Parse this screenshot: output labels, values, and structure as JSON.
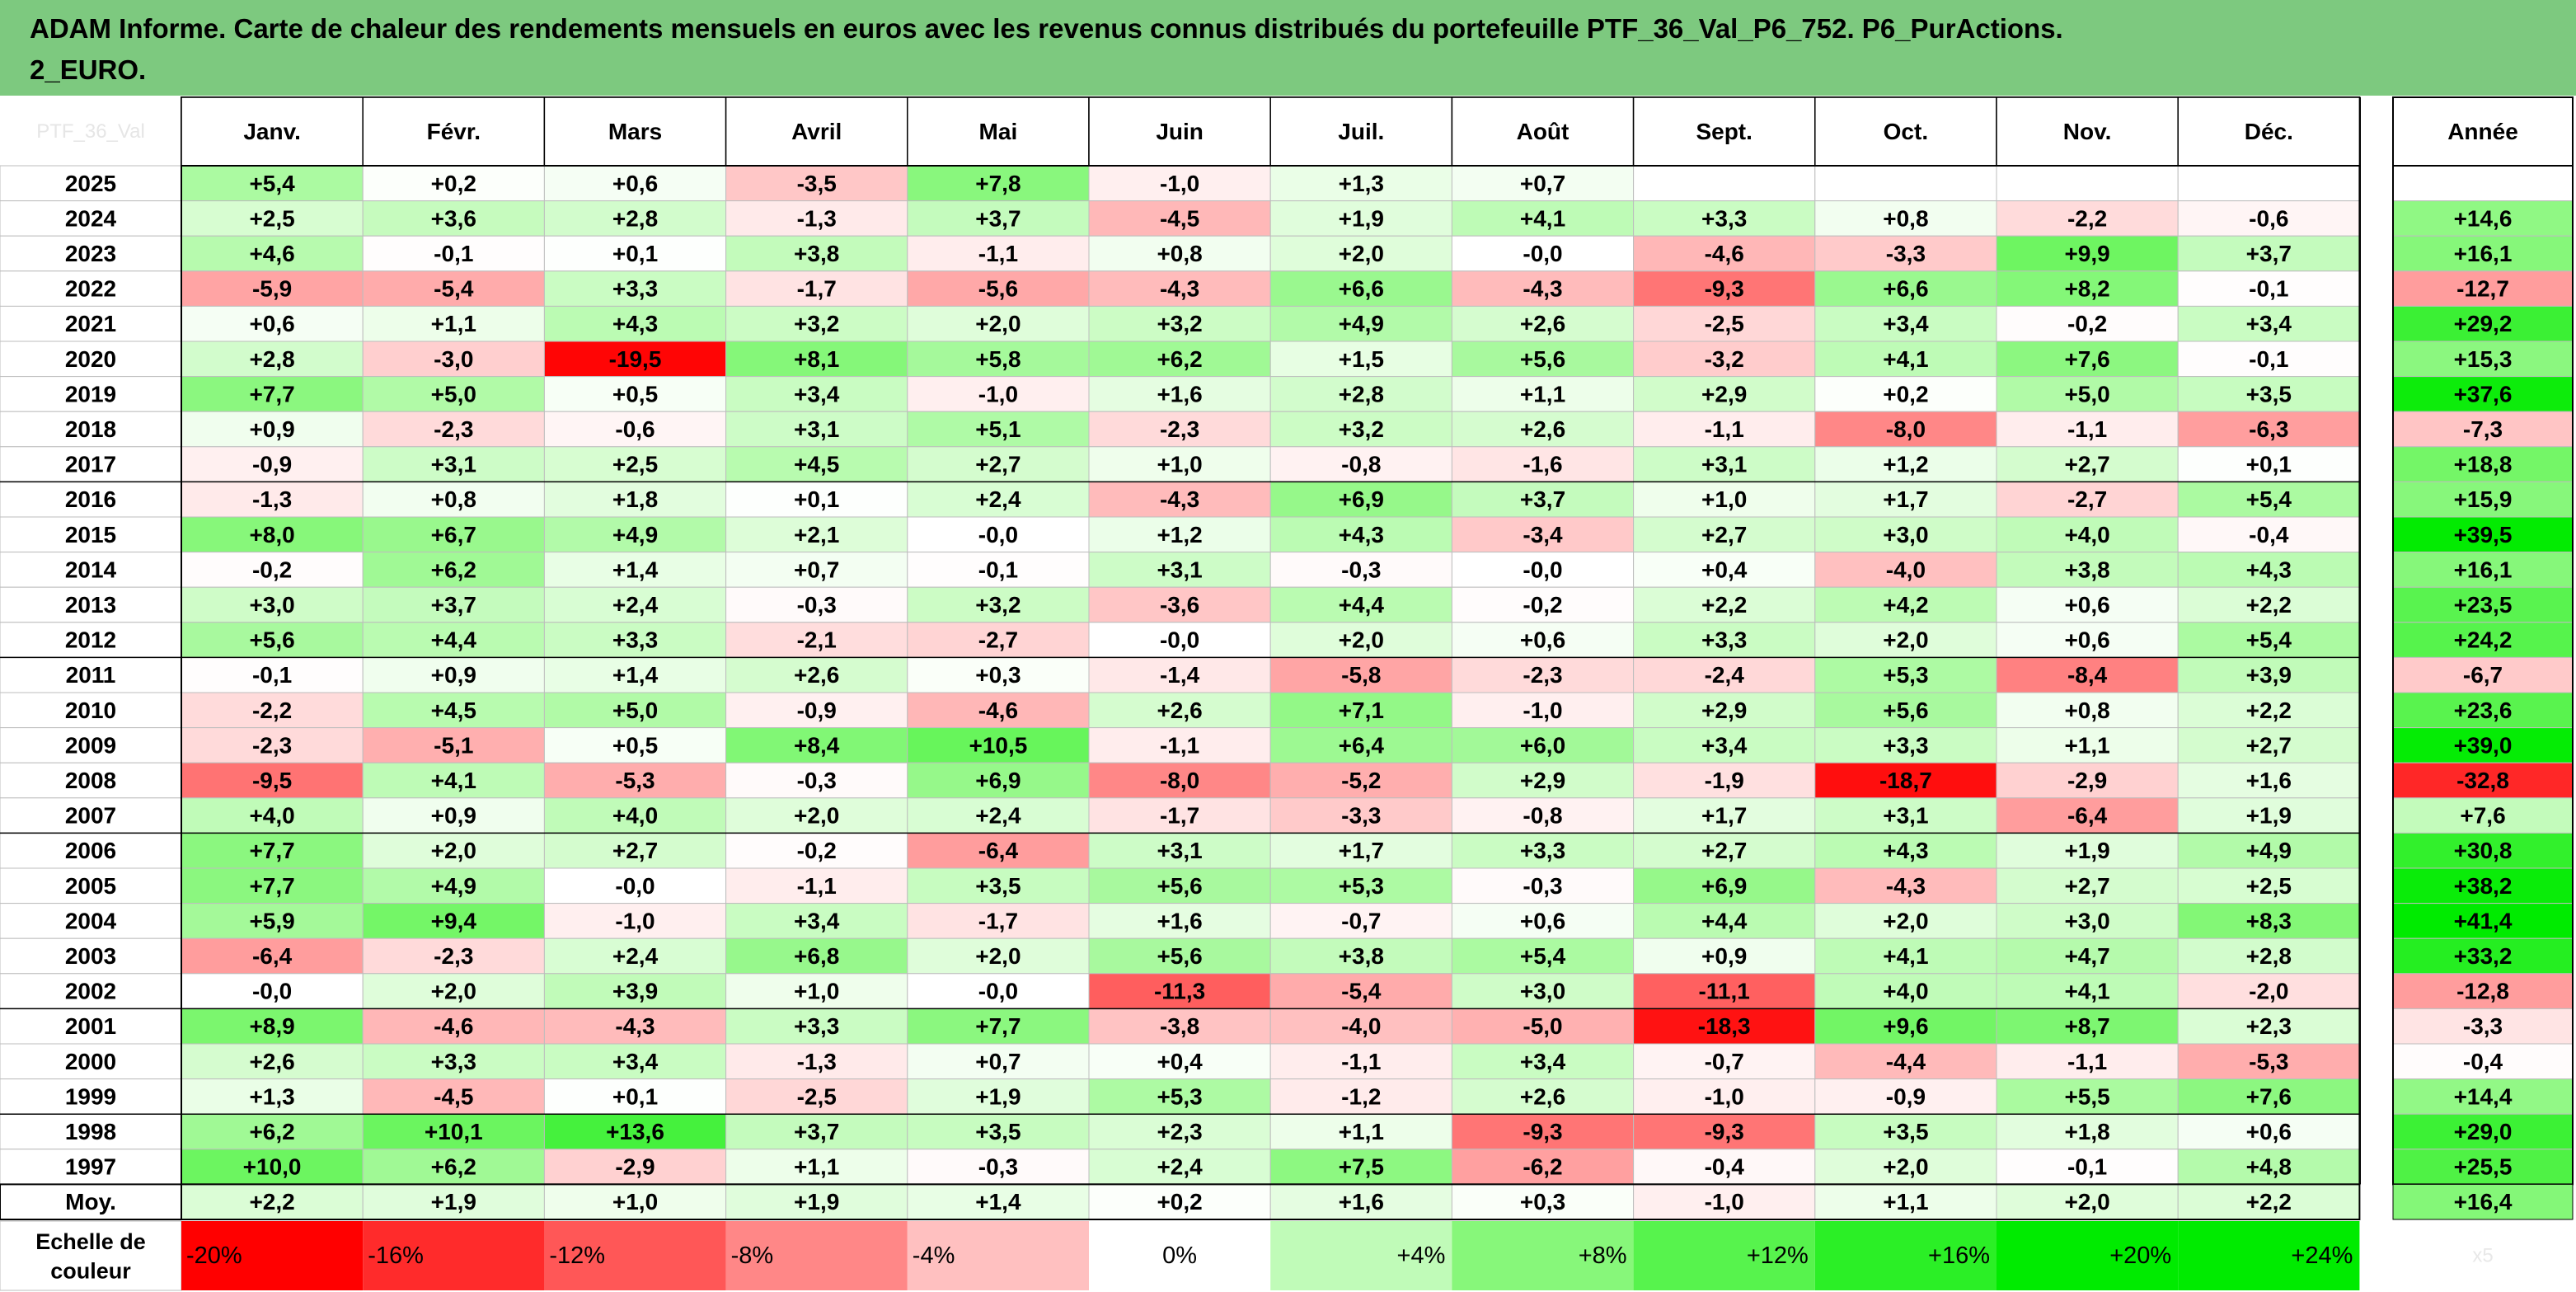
{
  "title": "ADAM Informe. Carte de chaleur des rendements mensuels en euros avec les revenus connus distribués du portefeuille PTF_36_Val_P6_752. P6_PurActions.\n2_EURO.",
  "chart_data": {
    "type": "heatmap",
    "corner_label": "PTF_36_Val",
    "columns": [
      "Janv.",
      "Févr.",
      "Mars",
      "Avril",
      "Mai",
      "Juin",
      "Juil.",
      "Août",
      "Sept.",
      "Oct.",
      "Nov.",
      "Déc."
    ],
    "annual_header": "Année",
    "rows": [
      {
        "year": "2025",
        "months": [
          5.4,
          0.2,
          0.6,
          -3.5,
          7.8,
          -1.0,
          1.3,
          0.7,
          null,
          null,
          null,
          null
        ],
        "annual": null
      },
      {
        "year": "2024",
        "months": [
          2.5,
          3.6,
          2.8,
          -1.3,
          3.7,
          -4.5,
          1.9,
          4.1,
          3.3,
          0.8,
          -2.2,
          -0.6
        ],
        "annual": 14.6
      },
      {
        "year": "2023",
        "months": [
          4.6,
          -0.1,
          0.1,
          3.8,
          -1.1,
          0.8,
          2.0,
          -0.0,
          -4.6,
          -3.3,
          9.9,
          3.7
        ],
        "annual": 16.1
      },
      {
        "year": "2022",
        "months": [
          -5.9,
          -5.4,
          3.3,
          -1.7,
          -5.6,
          -4.3,
          6.6,
          -4.3,
          -9.3,
          6.6,
          8.2,
          -0.1
        ],
        "annual": -12.7
      },
      {
        "year": "2021",
        "months": [
          0.6,
          1.1,
          4.3,
          3.2,
          2.0,
          3.2,
          4.9,
          2.6,
          -2.5,
          3.4,
          -0.2,
          3.4
        ],
        "annual": 29.2
      },
      {
        "year": "2020",
        "months": [
          2.8,
          -3.0,
          -19.5,
          8.1,
          5.8,
          6.2,
          1.5,
          5.6,
          -3.2,
          4.1,
          7.6,
          -0.1
        ],
        "annual": 15.3
      },
      {
        "year": "2019",
        "months": [
          7.7,
          5.0,
          0.5,
          3.4,
          -1.0,
          1.6,
          2.8,
          1.1,
          2.9,
          0.2,
          5.0,
          3.5
        ],
        "annual": 37.6
      },
      {
        "year": "2018",
        "months": [
          0.9,
          -2.3,
          -0.6,
          3.1,
          5.1,
          -2.3,
          3.2,
          2.6,
          -1.1,
          -8.0,
          -1.1,
          -6.3
        ],
        "annual": -7.3
      },
      {
        "year": "2017",
        "months": [
          -0.9,
          3.1,
          2.5,
          4.5,
          2.7,
          1.0,
          -0.8,
          -1.6,
          3.1,
          1.2,
          2.7,
          0.1
        ],
        "annual": 18.8
      },
      {
        "year": "2016",
        "months": [
          -1.3,
          0.8,
          1.8,
          0.1,
          2.4,
          -4.3,
          6.9,
          3.7,
          1.0,
          1.7,
          -2.7,
          5.4
        ],
        "annual": 15.9
      },
      {
        "year": "2015",
        "months": [
          8.0,
          6.7,
          4.9,
          2.1,
          -0.0,
          1.2,
          4.3,
          -3.4,
          2.7,
          3.0,
          4.0,
          -0.4
        ],
        "annual": 39.5
      },
      {
        "year": "2014",
        "months": [
          -0.2,
          6.2,
          1.4,
          0.7,
          -0.1,
          3.1,
          -0.3,
          -0.0,
          0.4,
          -4.0,
          3.8,
          4.3
        ],
        "annual": 16.1
      },
      {
        "year": "2013",
        "months": [
          3.0,
          3.7,
          2.4,
          -0.3,
          3.2,
          -3.6,
          4.4,
          -0.2,
          2.2,
          4.2,
          0.6,
          2.2
        ],
        "annual": 23.5
      },
      {
        "year": "2012",
        "months": [
          5.6,
          4.4,
          3.3,
          -2.1,
          -2.7,
          -0.0,
          2.0,
          0.6,
          3.3,
          2.0,
          0.6,
          5.4
        ],
        "annual": 24.2
      },
      {
        "year": "2011",
        "months": [
          -0.1,
          0.9,
          1.4,
          2.6,
          0.3,
          -1.4,
          -5.8,
          -2.3,
          -2.4,
          5.3,
          -8.4,
          3.9
        ],
        "annual": -6.7
      },
      {
        "year": "2010",
        "months": [
          -2.2,
          4.5,
          5.0,
          -0.9,
          -4.6,
          2.6,
          7.1,
          -1.0,
          2.9,
          5.6,
          0.8,
          2.2
        ],
        "annual": 23.6
      },
      {
        "year": "2009",
        "months": [
          -2.3,
          -5.1,
          0.5,
          8.4,
          10.5,
          -1.1,
          6.4,
          6.0,
          3.4,
          3.3,
          1.1,
          2.7
        ],
        "annual": 39.0
      },
      {
        "year": "2008",
        "months": [
          -9.5,
          4.1,
          -5.3,
          -0.3,
          6.9,
          -8.0,
          -5.2,
          2.9,
          -1.9,
          -18.7,
          -2.9,
          1.6
        ],
        "annual": -32.8
      },
      {
        "year": "2007",
        "months": [
          4.0,
          0.9,
          4.0,
          2.0,
          2.4,
          -1.7,
          -3.3,
          -0.8,
          1.7,
          3.1,
          -6.4,
          1.9
        ],
        "annual": 7.6
      },
      {
        "year": "2006",
        "months": [
          7.7,
          2.0,
          2.7,
          -0.2,
          -6.4,
          3.1,
          1.7,
          3.3,
          2.7,
          4.3,
          1.9,
          4.9
        ],
        "annual": 30.8
      },
      {
        "year": "2005",
        "months": [
          7.7,
          4.9,
          -0.0,
          -1.1,
          3.5,
          5.6,
          5.3,
          -0.3,
          6.9,
          -4.3,
          2.7,
          2.5
        ],
        "annual": 38.2
      },
      {
        "year": "2004",
        "months": [
          5.9,
          9.4,
          -1.0,
          3.4,
          -1.7,
          1.6,
          -0.7,
          0.6,
          4.4,
          2.0,
          3.0,
          8.3
        ],
        "annual": 41.4
      },
      {
        "year": "2003",
        "months": [
          -6.4,
          -2.3,
          2.4,
          6.8,
          2.0,
          5.6,
          3.8,
          5.4,
          0.9,
          4.1,
          4.7,
          2.8
        ],
        "annual": 33.2
      },
      {
        "year": "2002",
        "months": [
          -0.0,
          2.0,
          3.9,
          1.0,
          -0.0,
          -11.3,
          -5.4,
          3.0,
          -11.1,
          4.0,
          4.1,
          -2.0
        ],
        "annual": -12.8
      },
      {
        "year": "2001",
        "months": [
          8.9,
          -4.6,
          -4.3,
          3.3,
          7.7,
          -3.8,
          -4.0,
          -5.0,
          -18.3,
          9.6,
          8.7,
          2.3
        ],
        "annual": -3.3
      },
      {
        "year": "2000",
        "months": [
          2.6,
          3.3,
          3.4,
          -1.3,
          0.7,
          0.4,
          -1.1,
          3.4,
          -0.7,
          -4.4,
          -1.1,
          -5.3
        ],
        "annual": -0.4
      },
      {
        "year": "1999",
        "months": [
          1.3,
          -4.5,
          0.1,
          -2.5,
          1.9,
          5.3,
          -1.2,
          2.6,
          -1.0,
          -0.9,
          5.5,
          7.6
        ],
        "annual": 14.4
      },
      {
        "year": "1998",
        "months": [
          6.2,
          10.1,
          13.6,
          3.7,
          3.5,
          2.3,
          1.1,
          -9.3,
          -9.3,
          3.5,
          1.8,
          0.6
        ],
        "annual": 29.0
      },
      {
        "year": "1997",
        "months": [
          10.0,
          6.2,
          -2.9,
          1.1,
          -0.3,
          2.4,
          7.5,
          -6.2,
          -0.4,
          2.0,
          -0.1,
          4.8
        ],
        "annual": 25.5
      }
    ],
    "average": {
      "label": "Moy.",
      "months": [
        2.2,
        1.9,
        1.0,
        1.9,
        1.4,
        0.2,
        1.6,
        0.3,
        -1.0,
        1.1,
        2.0,
        2.2
      ],
      "annual": 16.4
    },
    "scale": {
      "label": "Echelle de couleur",
      "steps": [
        {
          "text": "-20%",
          "value": -20
        },
        {
          "text": "-16%",
          "value": -16
        },
        {
          "text": "-12%",
          "value": -12
        },
        {
          "text": "-8%",
          "value": -8
        },
        {
          "text": "-4%",
          "value": -4
        },
        {
          "text": "0%",
          "value": 0
        },
        {
          "text": "+4%",
          "value": 4
        },
        {
          "text": "+8%",
          "value": 8
        },
        {
          "text": "+12%",
          "value": 12
        },
        {
          "text": "+16%",
          "value": 16
        },
        {
          "text": "+20%",
          "value": 20
        },
        {
          "text": "+24%",
          "value": 24
        }
      ],
      "annual_scale_note": "x5"
    },
    "colors": {
      "negative_max": "#ff0000",
      "positive_max": "#00ff00",
      "neutral": "#ffffff",
      "title_background": "#7dc97f"
    }
  }
}
